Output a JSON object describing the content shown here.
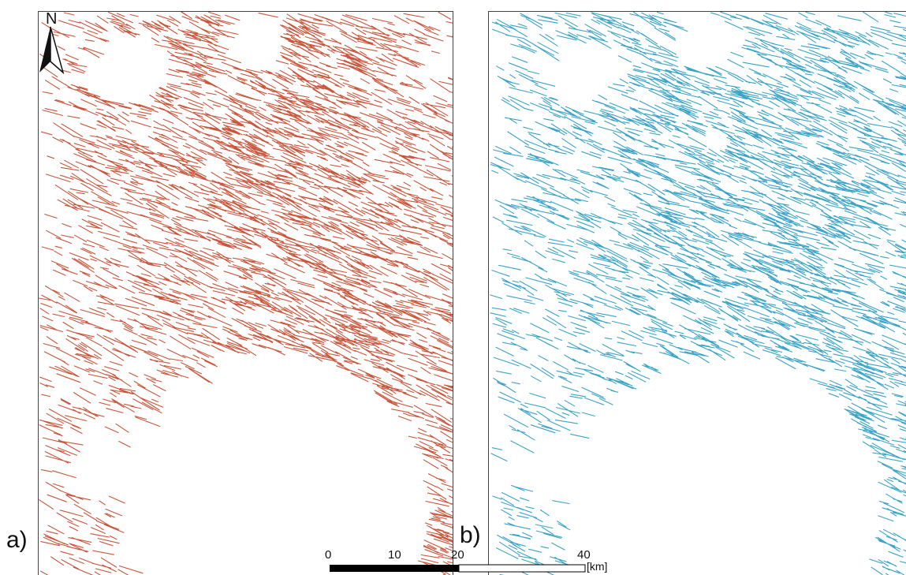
{
  "panels": [
    {
      "id": "a",
      "label": "a)",
      "line_color": "#c9553b"
    },
    {
      "id": "b",
      "label": "b)",
      "line_color": "#3aa3c8"
    }
  ],
  "north_arrow": {
    "letter": "N"
  },
  "scalebar": {
    "ticks": [
      "0",
      "10",
      "20",
      "40"
    ],
    "unit": "[km]"
  }
}
